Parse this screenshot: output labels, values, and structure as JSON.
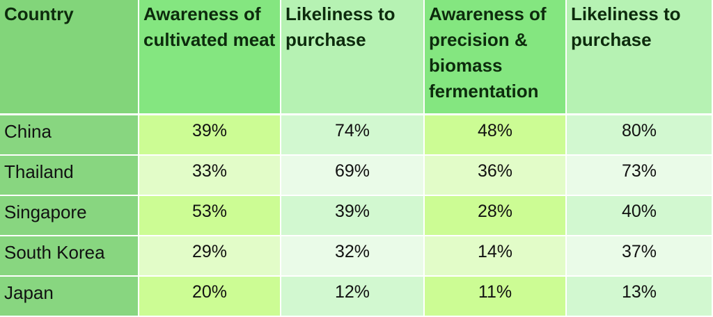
{
  "chart_data": {
    "type": "table",
    "columns": [
      "Country",
      "Awareness of cultivated meat",
      "Likeliness to purchase",
      "Awareness of precision & biomass fermentation",
      "Likeliness to purchase"
    ],
    "rows": [
      {
        "country": "China",
        "values": [
          "39%",
          "74%",
          "48%",
          "80%"
        ]
      },
      {
        "country": "Thailand",
        "values": [
          "33%",
          "69%",
          "36%",
          "73%"
        ]
      },
      {
        "country": "Singapore",
        "values": [
          "53%",
          "39%",
          "28%",
          "40%"
        ]
      },
      {
        "country": "South Korea",
        "values": [
          "29%",
          "32%",
          "14%",
          "37%"
        ]
      },
      {
        "country": "Japan",
        "values": [
          "20%",
          "12%",
          "11%",
          "13%"
        ]
      }
    ]
  },
  "colors": {
    "header_country": "#82d57a",
    "header_awareness": "#84e680",
    "header_likeliness": "#b6f2b3",
    "country_cell": "#88d680",
    "awareness_cell_alt1": "#ccfc94",
    "awareness_cell_alt2": "#e2fcc8",
    "likeliness_cell_alt1": "#d2f8d0",
    "likeliness_cell_alt2": "#eafbe8"
  }
}
